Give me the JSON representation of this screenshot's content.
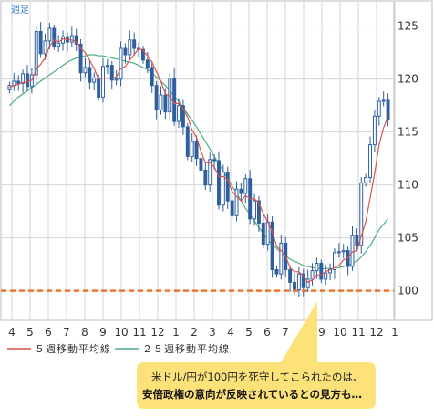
{
  "corner_label": "週足",
  "legend": [
    {
      "label": "５週移動平均線",
      "color": "#d9534f"
    },
    {
      "label": "２５週移動平均線",
      "color": "#4caf7d"
    }
  ],
  "callout": {
    "line1": "米ドル/円が100円を死守してこられたのは、",
    "line2": "安倍政権の意向が反映されているとの見方も…",
    "fill": "#fde27a"
  },
  "colors": {
    "candle_up": "#2f5f9e",
    "candle_down": "#2f5f9e",
    "ma5": "#d9534f",
    "ma25": "#4caf7d",
    "support_line": "#e8772e",
    "grid": "#d6d6d6"
  },
  "chart_data": {
    "type": "candlestick",
    "title": "",
    "x_ticks": [
      "4",
      "5",
      "6",
      "7",
      "8",
      "9",
      "10",
      "11",
      "12",
      "1",
      "2",
      "3",
      "4",
      "5",
      "6",
      "7",
      "",
      "9",
      "10",
      "11",
      "12",
      "1"
    ],
    "y_ticks": [
      100,
      105,
      110,
      115,
      120,
      125
    ],
    "ylim": [
      97.3,
      127.3
    ],
    "support_level": 100,
    "close": [
      119.4,
      119.8,
      119.6,
      120.5,
      119.3,
      120.4,
      124.5,
      122.4,
      123.6,
      124.8,
      123.1,
      123.4,
      124.0,
      123.5,
      124.1,
      123.3,
      120.6,
      121.1,
      119.7,
      120.1,
      118.3,
      121.2,
      121.3,
      119.9,
      120.0,
      122.9,
      122.3,
      123.7,
      122.9,
      122.8,
      121.8,
      121.1,
      119.4,
      117.1,
      118.5,
      116.9,
      120.1,
      116.0,
      117.5,
      115.5,
      112.7,
      114.1,
      112.5,
      111.4,
      110.0,
      112.4,
      112.3,
      108.1,
      111.2,
      108.5,
      107.1,
      109.6,
      109.2,
      110.6,
      106.8,
      108.5,
      106.4,
      104.4,
      106.5,
      102.0,
      101.6,
      104.5,
      102.0,
      100.8,
      100.1,
      101.6,
      100.3,
      101.1,
      101.9,
      102.6,
      101.1,
      101.7,
      102.0,
      103.6,
      103.7,
      103.8,
      102.3,
      105.2,
      104.3,
      110.2,
      110.7,
      113.8,
      116.5,
      117.9,
      118.0,
      116.2
    ],
    "ma5": [
      119.2,
      119.4,
      119.5,
      119.7,
      119.7,
      119.9,
      120.9,
      121.4,
      122.0,
      123.1,
      123.7,
      123.5,
      123.8,
      123.8,
      123.7,
      123.5,
      122.9,
      122.5,
      121.8,
      121.0,
      120.0,
      120.1,
      120.1,
      120.1,
      120.2,
      121.0,
      121.2,
      121.8,
      122.3,
      122.9,
      122.7,
      122.2,
      121.6,
      120.7,
      119.8,
      118.6,
      118.4,
      117.7,
      117.7,
      117.2,
      116.4,
      115.2,
      114.5,
      113.2,
      112.1,
      112.1,
      111.7,
      110.8,
      110.8,
      110.5,
      109.4,
      108.9,
      108.5,
      109.0,
      108.7,
      108.7,
      108.3,
      107.3,
      106.5,
      105.6,
      104.2,
      103.8,
      103.3,
      102.2,
      101.8,
      101.8,
      101.4,
      100.8,
      101.0,
      101.5,
      101.5,
      101.8,
      102.0,
      102.2,
      102.4,
      102.9,
      103.1,
      103.7,
      103.8,
      105.2,
      106.5,
      108.8,
      111.1,
      113.8,
      115.4,
      116.5
    ],
    "ma25": [
      117.5,
      117.9,
      118.3,
      118.6,
      118.9,
      119.2,
      119.5,
      119.8,
      120.1,
      120.4,
      120.7,
      121.0,
      121.3,
      121.6,
      121.8,
      122.0,
      122.1,
      122.2,
      122.3,
      122.3,
      122.2,
      122.2,
      122.1,
      122.0,
      121.9,
      121.8,
      121.7,
      121.6,
      121.5,
      121.3,
      121.1,
      120.9,
      120.6,
      120.2,
      119.8,
      119.4,
      118.9,
      118.4,
      117.9,
      117.3,
      116.7,
      116.1,
      115.5,
      114.8,
      114.1,
      113.4,
      112.7,
      112.0,
      111.3,
      110.6,
      109.9,
      109.2,
      108.5,
      107.8,
      107.2,
      106.6,
      106.0,
      105.4,
      104.8,
      104.4,
      104.0,
      103.6,
      103.3,
      103.0,
      102.8,
      102.6,
      102.4,
      102.3,
      102.2,
      102.1,
      102.1,
      102.1,
      102.1,
      102.1,
      102.2,
      102.3,
      102.4,
      102.6,
      102.8,
      103.2,
      103.7,
      104.3,
      105.0,
      105.8,
      106.3,
      106.8
    ]
  }
}
